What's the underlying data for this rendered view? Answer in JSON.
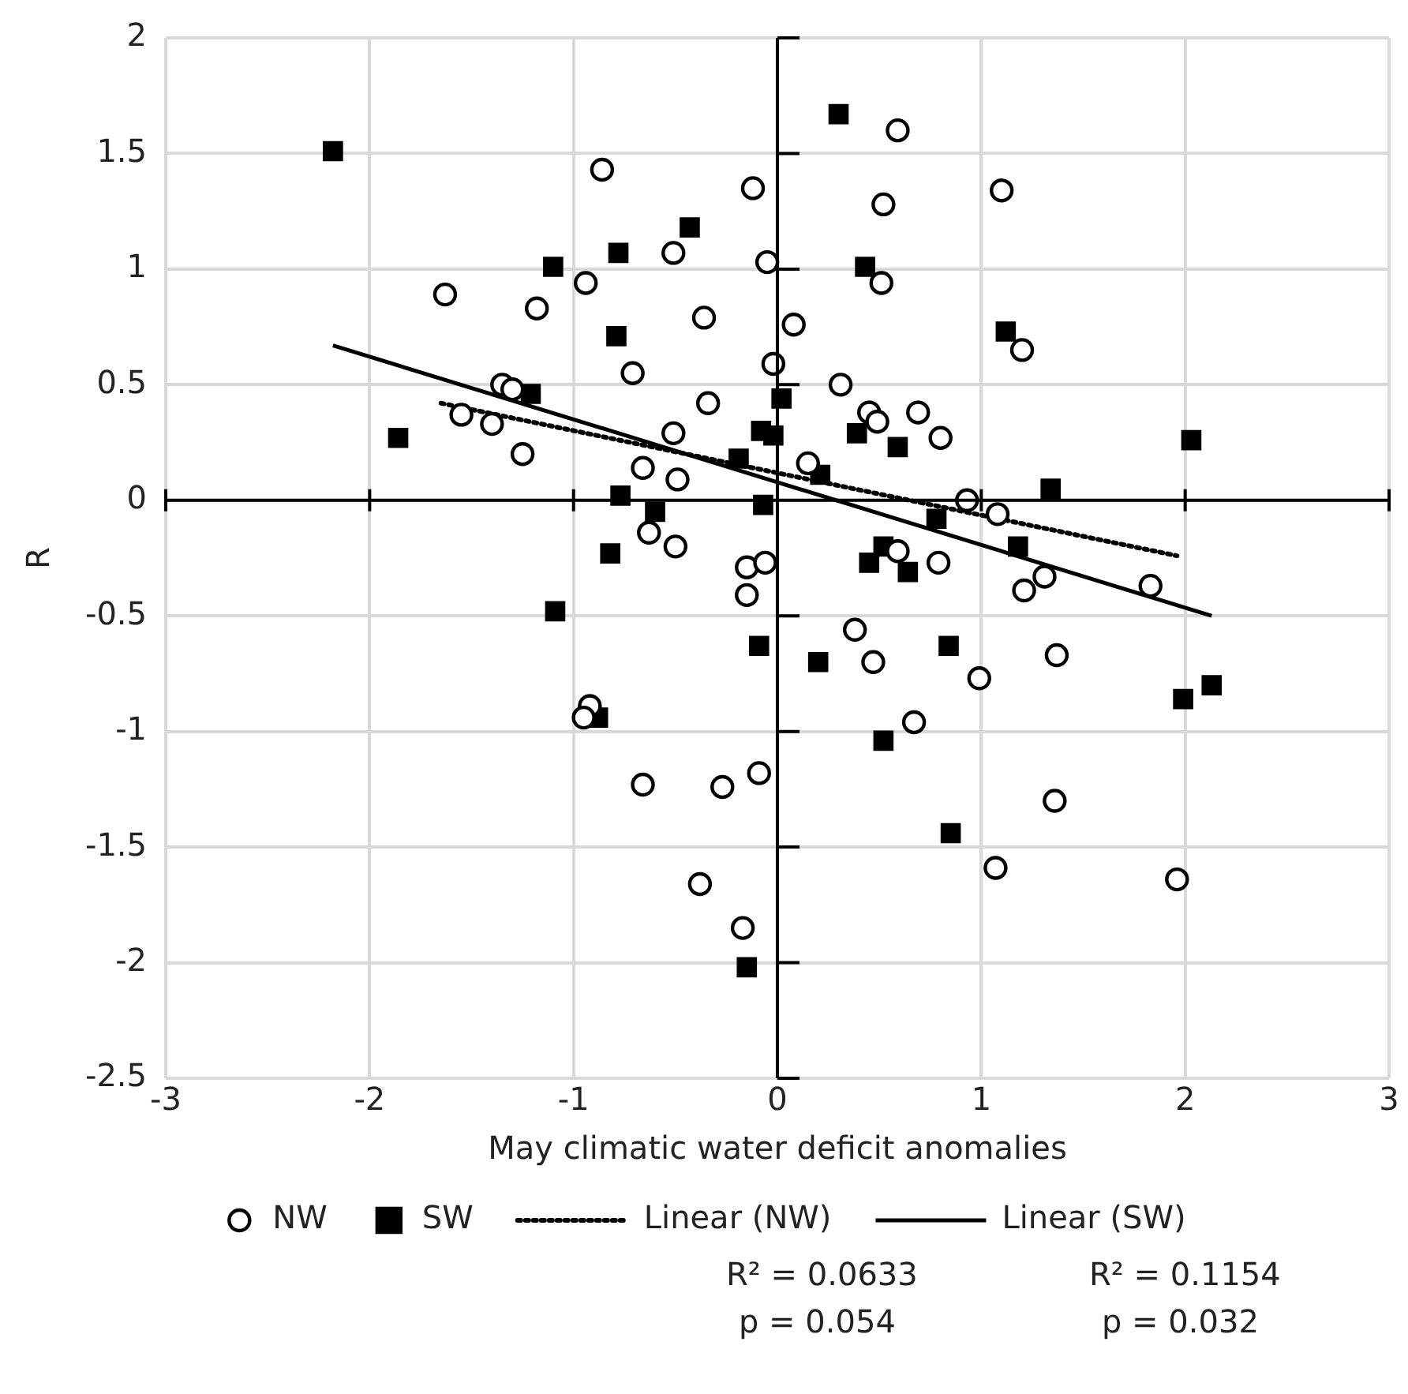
{
  "chart_data": {
    "type": "scatter",
    "xlabel": "May climatic water deficit anomalies",
    "ylabel": "R",
    "xlim": [
      -3,
      3
    ],
    "xticks": [
      -3,
      -2,
      -1,
      0,
      1,
      2,
      3
    ],
    "ylim": [
      -2.5,
      2
    ],
    "yticks": [
      -2.5,
      -2,
      -1.5,
      -1,
      -0.5,
      0,
      0.5,
      1,
      1.5,
      2
    ],
    "grid": true,
    "legend": "bottom",
    "series": [
      {
        "name": "NW",
        "type": "scatter",
        "marker": "circle",
        "color": "#000000",
        "x": [
          0.59,
          -0.86,
          -0.12,
          1.1,
          0.52,
          -0.51,
          -0.05,
          -0.94,
          0.51,
          -1.63,
          -1.18,
          -0.36,
          0.08,
          1.2,
          -0.02,
          -0.71,
          0.31,
          -1.35,
          -1.3,
          -0.34,
          0.45,
          0.49,
          0.69,
          -1.55,
          -1.4,
          0.8,
          -0.51,
          0.15,
          -1.25,
          -0.66,
          -0.49,
          0.93,
          1.08,
          -0.63,
          -0.5,
          -0.15,
          -0.06,
          -0.15,
          0.59,
          0.79,
          1.31,
          1.21,
          1.83,
          0.38,
          0.47,
          0.99,
          1.37,
          0.67,
          -0.92,
          -0.95,
          -0.66,
          -0.27,
          -0.09,
          1.36,
          -0.38,
          1.07,
          1.96,
          -0.17
        ],
        "values": [
          1.6,
          1.43,
          1.35,
          1.34,
          1.28,
          1.07,
          1.03,
          0.94,
          0.94,
          0.89,
          0.83,
          0.79,
          0.76,
          0.65,
          0.59,
          0.55,
          0.5,
          0.5,
          0.48,
          0.42,
          0.38,
          0.34,
          0.38,
          0.37,
          0.33,
          0.27,
          0.29,
          0.16,
          0.2,
          0.14,
          0.09,
          0.0,
          -0.06,
          -0.14,
          -0.2,
          -0.29,
          -0.27,
          -0.41,
          -0.22,
          -0.27,
          -0.33,
          -0.39,
          -0.37,
          -0.56,
          -0.7,
          -0.77,
          -0.67,
          -0.96,
          -0.89,
          -0.94,
          -1.23,
          -1.24,
          -1.18,
          -1.3,
          -1.66,
          -1.59,
          -1.64,
          -1.85
        ]
      },
      {
        "name": "SW",
        "type": "scatter",
        "marker": "square",
        "color": "#000000",
        "x": [
          -2.18,
          0.3,
          -0.43,
          -0.78,
          -1.1,
          0.43,
          1.12,
          -0.79,
          -1.21,
          0.02,
          -0.08,
          -0.02,
          0.39,
          0.59,
          -0.19,
          0.21,
          2.03,
          1.34,
          -1.86,
          -0.77,
          -0.6,
          -0.07,
          0.78,
          1.18,
          0.52,
          0.45,
          0.64,
          -0.82,
          -1.09,
          -0.09,
          0.84,
          0.2,
          -0.88,
          2.13,
          1.99,
          0.52,
          0.85,
          -0.15
        ],
        "values": [
          1.51,
          1.67,
          1.18,
          1.07,
          1.01,
          1.01,
          0.73,
          0.71,
          0.46,
          0.44,
          0.3,
          0.28,
          0.29,
          0.23,
          0.18,
          0.11,
          0.26,
          0.05,
          0.27,
          0.02,
          -0.05,
          -0.02,
          -0.08,
          -0.2,
          -0.2,
          -0.27,
          -0.31,
          -0.23,
          -0.48,
          -0.63,
          -0.63,
          -0.7,
          -0.94,
          -0.8,
          -0.86,
          -1.04,
          -1.44,
          -2.02
        ]
      },
      {
        "name": "Linear (NW)",
        "type": "line",
        "line_style": "dotted",
        "color": "#000000",
        "x": [
          -1.65,
          1.96
        ],
        "values": [
          0.42,
          -0.24
        ]
      },
      {
        "name": "Linear (SW)",
        "type": "line",
        "line_style": "solid",
        "color": "#000000",
        "x": [
          -2.18,
          2.13
        ],
        "values": [
          0.67,
          -0.5
        ]
      }
    ],
    "annotations": [
      "R² = 0.0633",
      "R² = 0.1154",
      "p = 0.054",
      "p = 0.032"
    ]
  }
}
